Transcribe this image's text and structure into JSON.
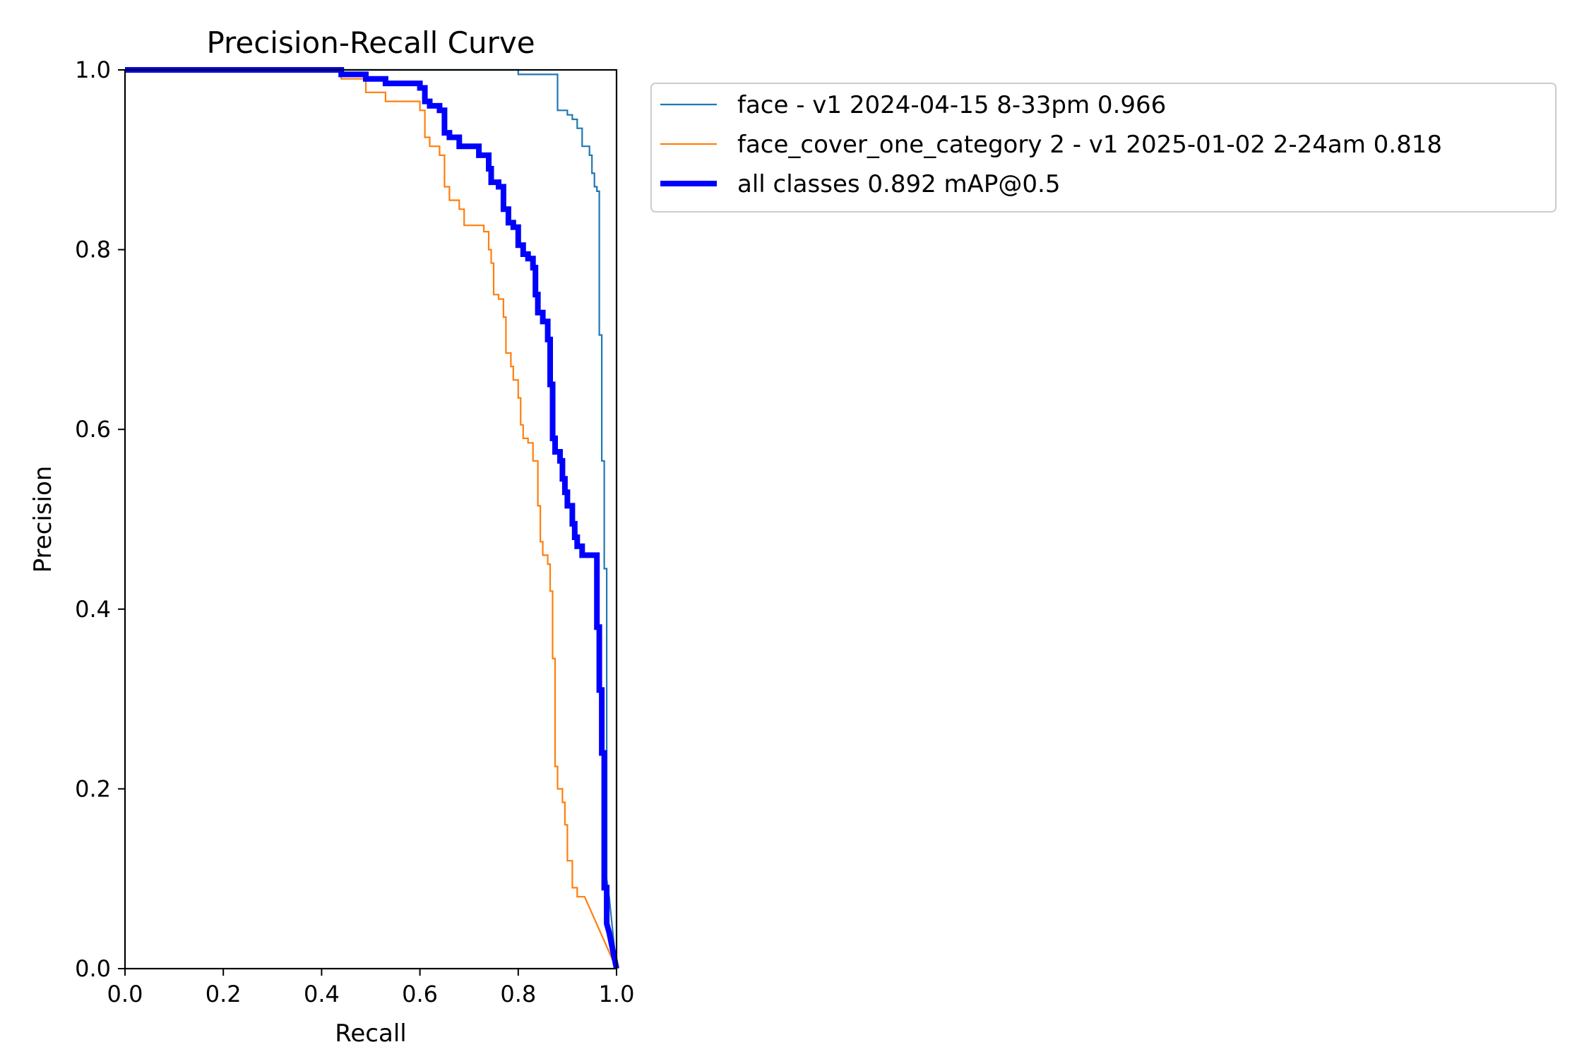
{
  "chart_data": {
    "type": "line",
    "title": "Precision-Recall Curve",
    "xlabel": "Recall",
    "ylabel": "Precision",
    "xlim": [
      0,
      1
    ],
    "ylim": [
      0,
      1
    ],
    "x_ticks": [
      "0.0",
      "0.2",
      "0.4",
      "0.6",
      "0.8",
      "1.0"
    ],
    "y_ticks": [
      "0.0",
      "0.2",
      "0.4",
      "0.6",
      "0.8",
      "1.0"
    ],
    "grid": false,
    "legend_placement": "outside-top-right",
    "series": [
      {
        "name": "face - v1 2024-04-15 8-33pm 0.966",
        "color": "#1f77b4",
        "style": "thin",
        "points": [
          [
            0,
            1.0
          ],
          [
            0.8,
            1.0
          ],
          [
            0.8,
            0.995
          ],
          [
            0.88,
            0.995
          ],
          [
            0.88,
            0.955
          ],
          [
            0.9,
            0.955
          ],
          [
            0.9,
            0.95
          ],
          [
            0.91,
            0.95
          ],
          [
            0.91,
            0.945
          ],
          [
            0.92,
            0.945
          ],
          [
            0.92,
            0.935
          ],
          [
            0.93,
            0.935
          ],
          [
            0.93,
            0.915
          ],
          [
            0.945,
            0.915
          ],
          [
            0.945,
            0.905
          ],
          [
            0.95,
            0.905
          ],
          [
            0.95,
            0.885
          ],
          [
            0.955,
            0.885
          ],
          [
            0.955,
            0.87
          ],
          [
            0.96,
            0.87
          ],
          [
            0.96,
            0.865
          ],
          [
            0.965,
            0.865
          ],
          [
            0.965,
            0.705
          ],
          [
            0.97,
            0.705
          ],
          [
            0.97,
            0.565
          ],
          [
            0.975,
            0.565
          ],
          [
            0.975,
            0.445
          ],
          [
            0.98,
            0.445
          ],
          [
            0.98,
            0.1
          ],
          [
            0.985,
            0.08
          ],
          [
            1.0,
            0.0
          ]
        ]
      },
      {
        "name": "face_cover_one_category 2 - v1 2025-01-02 2-24am 0.818",
        "color": "#ff7f0e",
        "style": "thin",
        "points": [
          [
            0,
            1.0
          ],
          [
            0.44,
            1.0
          ],
          [
            0.44,
            0.99
          ],
          [
            0.49,
            0.99
          ],
          [
            0.49,
            0.975
          ],
          [
            0.53,
            0.975
          ],
          [
            0.53,
            0.965
          ],
          [
            0.6,
            0.965
          ],
          [
            0.6,
            0.955
          ],
          [
            0.61,
            0.955
          ],
          [
            0.61,
            0.925
          ],
          [
            0.62,
            0.925
          ],
          [
            0.62,
            0.915
          ],
          [
            0.64,
            0.915
          ],
          [
            0.64,
            0.905
          ],
          [
            0.65,
            0.905
          ],
          [
            0.65,
            0.87
          ],
          [
            0.66,
            0.87
          ],
          [
            0.66,
            0.855
          ],
          [
            0.68,
            0.855
          ],
          [
            0.68,
            0.845
          ],
          [
            0.69,
            0.845
          ],
          [
            0.69,
            0.827
          ],
          [
            0.73,
            0.827
          ],
          [
            0.73,
            0.82
          ],
          [
            0.74,
            0.82
          ],
          [
            0.74,
            0.8
          ],
          [
            0.745,
            0.8
          ],
          [
            0.745,
            0.785
          ],
          [
            0.75,
            0.785
          ],
          [
            0.75,
            0.75
          ],
          [
            0.76,
            0.75
          ],
          [
            0.76,
            0.745
          ],
          [
            0.77,
            0.745
          ],
          [
            0.77,
            0.725
          ],
          [
            0.775,
            0.725
          ],
          [
            0.775,
            0.685
          ],
          [
            0.785,
            0.685
          ],
          [
            0.785,
            0.67
          ],
          [
            0.79,
            0.67
          ],
          [
            0.79,
            0.655
          ],
          [
            0.8,
            0.655
          ],
          [
            0.8,
            0.635
          ],
          [
            0.805,
            0.635
          ],
          [
            0.805,
            0.605
          ],
          [
            0.81,
            0.605
          ],
          [
            0.81,
            0.59
          ],
          [
            0.82,
            0.59
          ],
          [
            0.82,
            0.585
          ],
          [
            0.83,
            0.585
          ],
          [
            0.83,
            0.565
          ],
          [
            0.84,
            0.565
          ],
          [
            0.84,
            0.515
          ],
          [
            0.845,
            0.515
          ],
          [
            0.845,
            0.475
          ],
          [
            0.85,
            0.475
          ],
          [
            0.85,
            0.46
          ],
          [
            0.86,
            0.46
          ],
          [
            0.86,
            0.45
          ],
          [
            0.865,
            0.45
          ],
          [
            0.865,
            0.42
          ],
          [
            0.87,
            0.42
          ],
          [
            0.87,
            0.345
          ],
          [
            0.875,
            0.345
          ],
          [
            0.875,
            0.225
          ],
          [
            0.88,
            0.225
          ],
          [
            0.88,
            0.2
          ],
          [
            0.89,
            0.2
          ],
          [
            0.89,
            0.185
          ],
          [
            0.895,
            0.185
          ],
          [
            0.895,
            0.16
          ],
          [
            0.9,
            0.16
          ],
          [
            0.9,
            0.12
          ],
          [
            0.91,
            0.12
          ],
          [
            0.91,
            0.09
          ],
          [
            0.92,
            0.09
          ],
          [
            0.92,
            0.08
          ],
          [
            0.935,
            0.08
          ],
          [
            1.0,
            0.0
          ]
        ]
      },
      {
        "name": "all classes 0.892 mAP@0.5",
        "color": "#0000ff",
        "style": "thick",
        "points": [
          [
            0,
            1.0
          ],
          [
            0.44,
            1.0
          ],
          [
            0.44,
            0.995
          ],
          [
            0.49,
            0.995
          ],
          [
            0.49,
            0.99
          ],
          [
            0.53,
            0.99
          ],
          [
            0.53,
            0.985
          ],
          [
            0.6,
            0.985
          ],
          [
            0.6,
            0.98
          ],
          [
            0.61,
            0.98
          ],
          [
            0.61,
            0.965
          ],
          [
            0.62,
            0.965
          ],
          [
            0.62,
            0.96
          ],
          [
            0.64,
            0.96
          ],
          [
            0.64,
            0.955
          ],
          [
            0.65,
            0.955
          ],
          [
            0.65,
            0.93
          ],
          [
            0.66,
            0.93
          ],
          [
            0.66,
            0.925
          ],
          [
            0.68,
            0.925
          ],
          [
            0.68,
            0.915
          ],
          [
            0.72,
            0.915
          ],
          [
            0.72,
            0.905
          ],
          [
            0.74,
            0.905
          ],
          [
            0.74,
            0.89
          ],
          [
            0.745,
            0.89
          ],
          [
            0.745,
            0.875
          ],
          [
            0.76,
            0.875
          ],
          [
            0.76,
            0.87
          ],
          [
            0.77,
            0.87
          ],
          [
            0.77,
            0.845
          ],
          [
            0.78,
            0.845
          ],
          [
            0.78,
            0.83
          ],
          [
            0.79,
            0.83
          ],
          [
            0.79,
            0.825
          ],
          [
            0.8,
            0.825
          ],
          [
            0.8,
            0.805
          ],
          [
            0.81,
            0.805
          ],
          [
            0.81,
            0.795
          ],
          [
            0.82,
            0.795
          ],
          [
            0.82,
            0.79
          ],
          [
            0.83,
            0.79
          ],
          [
            0.83,
            0.78
          ],
          [
            0.835,
            0.78
          ],
          [
            0.835,
            0.75
          ],
          [
            0.84,
            0.75
          ],
          [
            0.84,
            0.73
          ],
          [
            0.85,
            0.73
          ],
          [
            0.85,
            0.72
          ],
          [
            0.86,
            0.72
          ],
          [
            0.86,
            0.7
          ],
          [
            0.865,
            0.7
          ],
          [
            0.865,
            0.65
          ],
          [
            0.87,
            0.65
          ],
          [
            0.87,
            0.59
          ],
          [
            0.875,
            0.59
          ],
          [
            0.875,
            0.575
          ],
          [
            0.885,
            0.575
          ],
          [
            0.885,
            0.565
          ],
          [
            0.89,
            0.565
          ],
          [
            0.89,
            0.545
          ],
          [
            0.895,
            0.545
          ],
          [
            0.895,
            0.53
          ],
          [
            0.9,
            0.53
          ],
          [
            0.9,
            0.515
          ],
          [
            0.91,
            0.515
          ],
          [
            0.91,
            0.495
          ],
          [
            0.915,
            0.495
          ],
          [
            0.915,
            0.48
          ],
          [
            0.92,
            0.48
          ],
          [
            0.92,
            0.47
          ],
          [
            0.93,
            0.47
          ],
          [
            0.93,
            0.46
          ],
          [
            0.96,
            0.46
          ],
          [
            0.96,
            0.38
          ],
          [
            0.965,
            0.38
          ],
          [
            0.965,
            0.31
          ],
          [
            0.97,
            0.31
          ],
          [
            0.97,
            0.24
          ],
          [
            0.975,
            0.24
          ],
          [
            0.975,
            0.09
          ],
          [
            0.98,
            0.09
          ],
          [
            0.98,
            0.05
          ],
          [
            0.985,
            0.04
          ],
          [
            1.0,
            0.0
          ]
        ]
      }
    ]
  }
}
